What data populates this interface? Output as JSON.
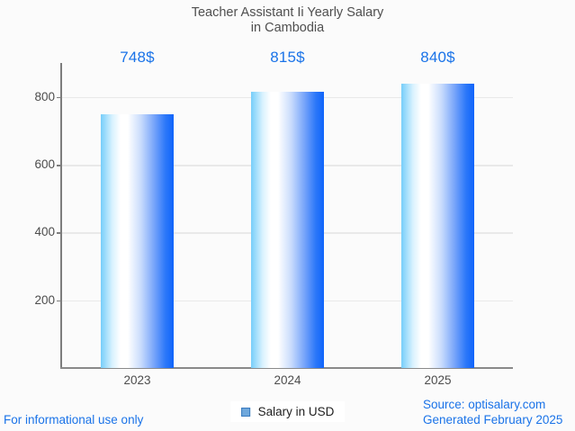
{
  "title": {
    "line1": "Teacher Assistant Ii Yearly Salary",
    "line2": "in Cambodia"
  },
  "chart_data": {
    "type": "bar",
    "title": "Teacher Assistant Ii Yearly Salary in Cambodia",
    "categories": [
      "2023",
      "2024",
      "2025"
    ],
    "values": [
      748,
      815,
      840
    ],
    "value_labels": [
      "748$",
      "815$",
      "840$"
    ],
    "series_name": "Salary in USD",
    "xlabel": "",
    "ylabel": "",
    "ylim": [
      0,
      900
    ],
    "yticks": [
      200,
      400,
      600,
      800
    ],
    "grid": true,
    "legend_position": "bottom"
  },
  "legend": {
    "label": "Salary in USD"
  },
  "footer": {
    "left": "For informational use only",
    "source": "Source: optisalary.com",
    "generated": "Generated February 2025"
  },
  "colors": {
    "accent_blue": "#1a73e8",
    "bar_gradient_left": "#76cefa",
    "bar_gradient_mid": "#ffffff",
    "bar_gradient_right": "#0f64fb",
    "legend_swatch_fill": "#6fa8dc",
    "legend_swatch_border": "#3a7bbf",
    "axis_line": "#7d7d7d",
    "gridline": "#e9e9e9",
    "text_dark": "#4d4d4d",
    "background": "#fbfbfb"
  }
}
